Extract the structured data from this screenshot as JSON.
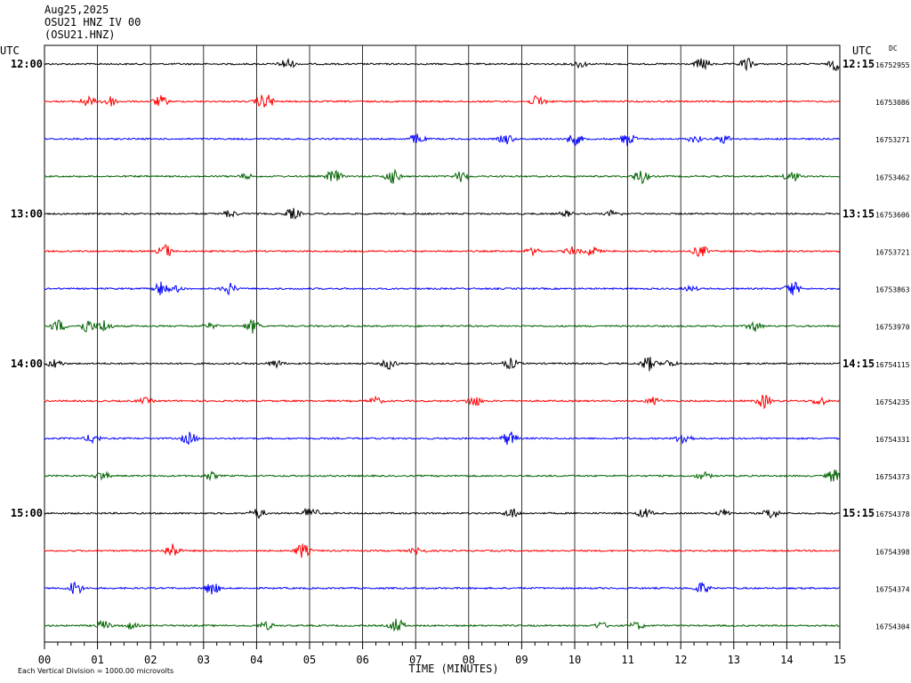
{
  "header": {
    "date": "Aug25,2025",
    "station_line": "OSU21 HNZ IV 00",
    "channel_line": "(OSU21.HNZ)"
  },
  "utc_left": "UTC",
  "utc_right": "UTC",
  "dc_label": "DC",
  "footer": {
    "scale_note": "Each Vertical Division = 1000.00 microvolts",
    "xlabel": "TIME (MINUTES)"
  },
  "colors": [
    "#000000",
    "#ff0000",
    "#0000ff",
    "#006400"
  ],
  "chart_data": {
    "type": "line",
    "xlabel": "TIME (MINUTES)",
    "xlim": [
      0,
      15
    ],
    "x_ticks": [
      "00",
      "01",
      "02",
      "03",
      "04",
      "05",
      "06",
      "07",
      "08",
      "09",
      "10",
      "11",
      "12",
      "13",
      "14",
      "15"
    ],
    "left_time_labels": [
      "12:00",
      "",
      "",
      "",
      "13:00",
      "",
      "",
      "",
      "14:00",
      "",
      "",
      "",
      "15:00",
      "",
      "",
      ""
    ],
    "right_time_labels": [
      "12:15",
      "",
      "",
      "",
      "13:15",
      "",
      "",
      "",
      "14:15",
      "",
      "",
      "",
      "15:15",
      "",
      "",
      ""
    ],
    "dc_values": [
      "16752955",
      "16753086",
      "16753271",
      "16753462",
      "16753606",
      "16753721",
      "16753863",
      "16753970",
      "16754115",
      "16754235",
      "16754331",
      "16754373",
      "16754378",
      "16754398",
      "16754374",
      "16754304"
    ],
    "grid": true,
    "traces": 16,
    "minutes_per_trace": 15
  }
}
